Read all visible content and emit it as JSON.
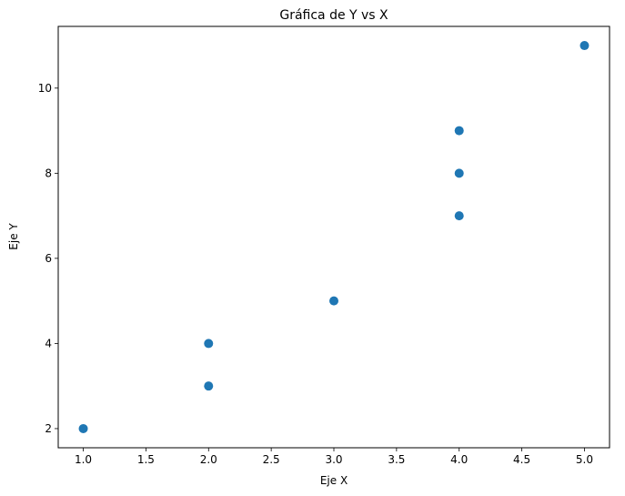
{
  "chart_data": {
    "type": "scatter",
    "title": "Gráfica de Y vs X",
    "xlabel": "Eje X",
    "ylabel": "Eje Y",
    "xlim": [
      0.8,
      5.2
    ],
    "ylim": [
      1.55,
      11.45
    ],
    "x_ticks": [
      1.0,
      1.5,
      2.0,
      2.5,
      3.0,
      3.5,
      4.0,
      4.5,
      5.0
    ],
    "x_tick_labels": [
      "1.0",
      "1.5",
      "2.0",
      "2.5",
      "3.0",
      "3.5",
      "4.0",
      "4.5",
      "5.0"
    ],
    "y_ticks": [
      2,
      4,
      6,
      8,
      10
    ],
    "y_tick_labels": [
      "2",
      "4",
      "6",
      "8",
      "10"
    ],
    "grid": false,
    "marker_color": "#1f77b4",
    "points": [
      {
        "x": 1,
        "y": 2
      },
      {
        "x": 2,
        "y": 3
      },
      {
        "x": 2,
        "y": 4
      },
      {
        "x": 3,
        "y": 5
      },
      {
        "x": 4,
        "y": 7
      },
      {
        "x": 4,
        "y": 8
      },
      {
        "x": 4,
        "y": 9
      },
      {
        "x": 5,
        "y": 11
      }
    ]
  }
}
